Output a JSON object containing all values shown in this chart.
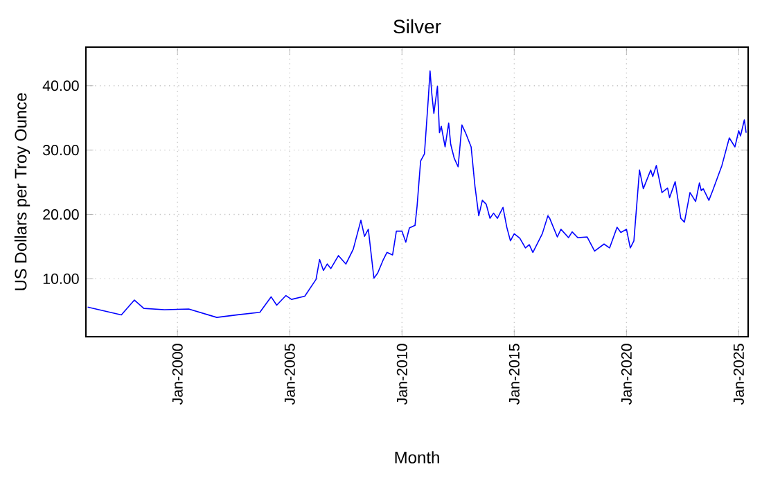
{
  "chart_data": {
    "type": "line",
    "title": "Silver",
    "xlabel": "Month",
    "ylabel": "US Dollars per Troy Ounce",
    "color": "#0000ff",
    "grid": true,
    "marker": "none",
    "line_style": "solid",
    "xlim": [
      "1995-12",
      "2025-06"
    ],
    "ylim": [
      1,
      46
    ],
    "xticks": [
      {
        "value": "2000-01",
        "label": "Jan-2000"
      },
      {
        "value": "2005-01",
        "label": "Jan-2005"
      },
      {
        "value": "2010-01",
        "label": "Jan-2010"
      },
      {
        "value": "2015-01",
        "label": "Jan-2015"
      },
      {
        "value": "2020-01",
        "label": "Jan-2020"
      },
      {
        "value": "2025-01",
        "label": "Jan-2025"
      }
    ],
    "yticks": [
      {
        "value": 10,
        "label": "10.00"
      },
      {
        "value": 20,
        "label": "20.00"
      },
      {
        "value": 30,
        "label": "30.00"
      },
      {
        "value": 40,
        "label": "40.00"
      }
    ],
    "x": [
      "1996-01",
      "1996-07",
      "1997-07",
      "1998-02",
      "1998-07",
      "1999-06",
      "2000-07",
      "2001-10",
      "2002-09",
      "2003-09",
      "2004-03",
      "2004-06",
      "2004-11",
      "2005-02",
      "2005-09",
      "2006-03",
      "2006-05",
      "2006-07",
      "2006-09",
      "2006-11",
      "2007-03",
      "2007-07",
      "2007-11",
      "2008-03",
      "2008-05",
      "2008-07",
      "2008-10",
      "2008-12",
      "2009-03",
      "2009-05",
      "2009-08",
      "2009-10",
      "2010-01",
      "2010-03",
      "2010-05",
      "2010-08",
      "2010-09",
      "2010-11",
      "2011-01",
      "2011-03",
      "2011-04",
      "2011-05",
      "2011-06",
      "2011-08",
      "2011-09",
      "2011-10",
      "2011-12",
      "2012-02",
      "2012-03",
      "2012-05",
      "2012-07",
      "2012-09",
      "2012-11",
      "2013-02",
      "2013-04",
      "2013-06",
      "2013-08",
      "2013-10",
      "2013-12",
      "2014-02",
      "2014-04",
      "2014-07",
      "2014-09",
      "2014-11",
      "2015-01",
      "2015-04",
      "2015-07",
      "2015-09",
      "2015-11",
      "2016-04",
      "2016-07",
      "2016-08",
      "2016-12",
      "2017-02",
      "2017-06",
      "2017-08",
      "2017-11",
      "2018-04",
      "2018-08",
      "2019-01",
      "2019-04",
      "2019-08",
      "2019-10",
      "2020-01",
      "2020-03",
      "2020-05",
      "2020-08",
      "2020-10",
      "2021-02",
      "2021-03",
      "2021-05",
      "2021-08",
      "2021-11",
      "2021-12",
      "2022-03",
      "2022-06",
      "2022-08",
      "2022-11",
      "2023-02",
      "2023-04",
      "2023-05",
      "2023-06",
      "2023-09",
      "2023-11",
      "2024-04",
      "2024-08",
      "2024-11",
      "2025-01",
      "2025-02",
      "2025-04",
      "2025-05"
    ],
    "values": [
      5.6,
      5.2,
      4.4,
      6.7,
      5.4,
      5.2,
      5.3,
      4.0,
      4.4,
      4.8,
      7.2,
      5.9,
      7.4,
      6.8,
      7.3,
      9.9,
      13.0,
      11.3,
      12.3,
      11.6,
      13.6,
      12.3,
      14.6,
      19.1,
      16.6,
      17.7,
      10.1,
      10.9,
      13.0,
      14.1,
      13.7,
      17.4,
      17.4,
      15.7,
      17.9,
      18.3,
      21.2,
      28.3,
      29.4,
      37.9,
      42.3,
      38.7,
      35.7,
      39.9,
      32.7,
      33.7,
      30.5,
      34.2,
      30.9,
      28.7,
      27.4,
      33.9,
      32.7,
      30.5,
      24.4,
      19.8,
      22.2,
      21.6,
      19.4,
      20.2,
      19.4,
      21.1,
      18.0,
      15.9,
      17.0,
      16.3,
      14.8,
      15.3,
      14.1,
      17.0,
      19.8,
      19.4,
      16.5,
      17.7,
      16.4,
      17.3,
      16.4,
      16.5,
      14.3,
      15.4,
      14.8,
      18.0,
      17.2,
      17.7,
      14.8,
      15.9,
      26.9,
      24.0,
      26.9,
      25.9,
      27.6,
      23.4,
      24.1,
      22.6,
      25.1,
      19.4,
      18.8,
      23.4,
      22.0,
      24.9,
      23.7,
      24.0,
      22.2,
      23.6,
      27.6,
      31.9,
      30.5,
      33.0,
      32.2,
      34.7,
      32.7
    ]
  }
}
